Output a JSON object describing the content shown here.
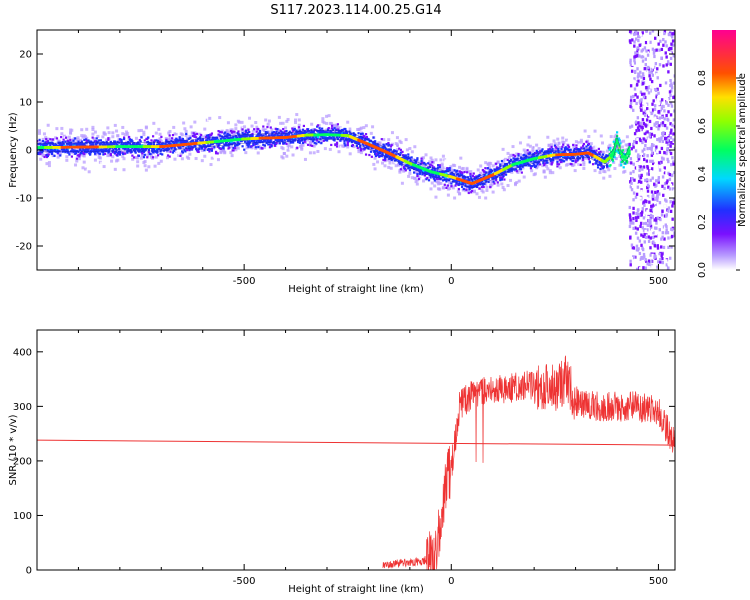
{
  "title": "S117.2023.114.00.25.G14",
  "chart_data": [
    {
      "type": "heatmap",
      "xlabel": "Height of straight line (km)",
      "ylabel": "Frequency (Hz)",
      "xlim": [
        -1000,
        540
      ],
      "ylim": [
        -25,
        25
      ],
      "xticks": [
        -500,
        0,
        500
      ],
      "yticks": [
        -20,
        -10,
        0,
        10,
        20
      ],
      "colorbar": {
        "label": "Normalized spectral amplitude",
        "range": [
          0,
          1
        ],
        "ticks": [
          "0.0",
          "0.2",
          "0.4",
          "0.6",
          "0.8"
        ],
        "colors": [
          "#ffffff",
          "#a884ff",
          "#6a00ff",
          "#0040ff",
          "#00e0ff",
          "#00ff40",
          "#e0ff00",
          "#ff5000",
          "#ff0080"
        ]
      },
      "ridge": {
        "x": [
          -1000,
          -900,
          -800,
          -700,
          -600,
          -500,
          -450,
          -400,
          -350,
          -300,
          -250,
          -200,
          -150,
          -100,
          -50,
          0,
          50,
          100,
          150,
          200,
          250,
          300,
          330,
          350,
          370,
          390,
          400,
          410,
          420,
          430
        ],
        "y": [
          0.5,
          0.6,
          0.7,
          0.7,
          1.5,
          2.3,
          2.5,
          2.6,
          3.1,
          3.2,
          3.0,
          1.2,
          -0.7,
          -2.8,
          -4.5,
          -5.6,
          -7.0,
          -5.2,
          -3.0,
          -1.8,
          -1.0,
          -0.9,
          -0.6,
          -1.5,
          -2.5,
          -1.0,
          2.0,
          -1.0,
          -2.0,
          0.0
        ]
      },
      "noise_region_x": [
        430,
        540
      ]
    },
    {
      "type": "line",
      "xlabel": "Height of straight line (km)",
      "ylabel": "SNR (10 * v/v)",
      "xlim": [
        -1000,
        540
      ],
      "ylim": [
        0,
        440
      ],
      "xticks": [
        -500,
        0,
        500
      ],
      "yticks": [
        0,
        100,
        200,
        300,
        400
      ],
      "series": [
        {
          "color": "#ee3333",
          "x": [
            -165,
            -120,
            -80,
            -50,
            -30,
            -20,
            -10,
            0,
            10,
            20,
            30,
            50,
            100,
            150,
            200,
            250,
            280,
            300,
            350,
            400,
            450,
            500,
            540
          ],
          "y": [
            10,
            12,
            15,
            20,
            60,
            120,
            170,
            190,
            240,
            300,
            310,
            320,
            330,
            335,
            340,
            335,
            350,
            310,
            300,
            300,
            300,
            290,
            230
          ]
        },
        {
          "color": "#ee3333",
          "x": [
            -1000,
            540
          ],
          "y": [
            238,
            229
          ]
        }
      ]
    }
  ]
}
